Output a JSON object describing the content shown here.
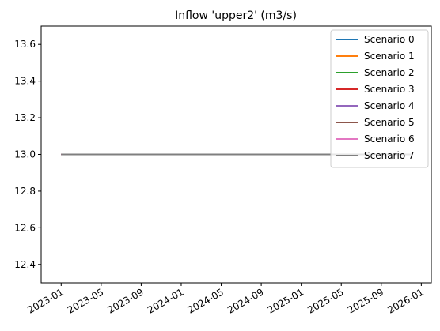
{
  "chart_data": {
    "type": "line",
    "title": "Inflow 'upper2' (m3/s)",
    "x": [
      "2023-01",
      "2025-12"
    ],
    "series": [
      {
        "name": "Scenario 0",
        "color": "#1f77b4",
        "values": [
          13,
          13
        ]
      },
      {
        "name": "Scenario 1",
        "color": "#ff7f0e",
        "values": [
          13,
          13
        ]
      },
      {
        "name": "Scenario 2",
        "color": "#2ca02c",
        "values": [
          13,
          13
        ]
      },
      {
        "name": "Scenario 3",
        "color": "#d62728",
        "values": [
          13,
          13
        ]
      },
      {
        "name": "Scenario 4",
        "color": "#9467bd",
        "values": [
          13,
          13
        ]
      },
      {
        "name": "Scenario 5",
        "color": "#8c564b",
        "values": [
          13,
          13
        ]
      },
      {
        "name": "Scenario 6",
        "color": "#e377c2",
        "values": [
          13,
          13
        ]
      },
      {
        "name": "Scenario 7",
        "color": "#7f7f7f",
        "values": [
          13,
          13
        ]
      }
    ],
    "xlim": [
      "2022-11",
      "2026-02"
    ],
    "xticks": [
      "2023-01",
      "2023-05",
      "2023-09",
      "2024-01",
      "2024-05",
      "2024-09",
      "2025-01",
      "2025-05",
      "2025-09",
      "2026-01"
    ],
    "ylim": [
      12.3,
      13.7
    ],
    "yticks": [
      12.4,
      12.6,
      12.8,
      {
        "value": 13,
        "label": "13.0"
      },
      13.2,
      13.4,
      13.6
    ],
    "grid": false,
    "legend": "upper-right"
  }
}
